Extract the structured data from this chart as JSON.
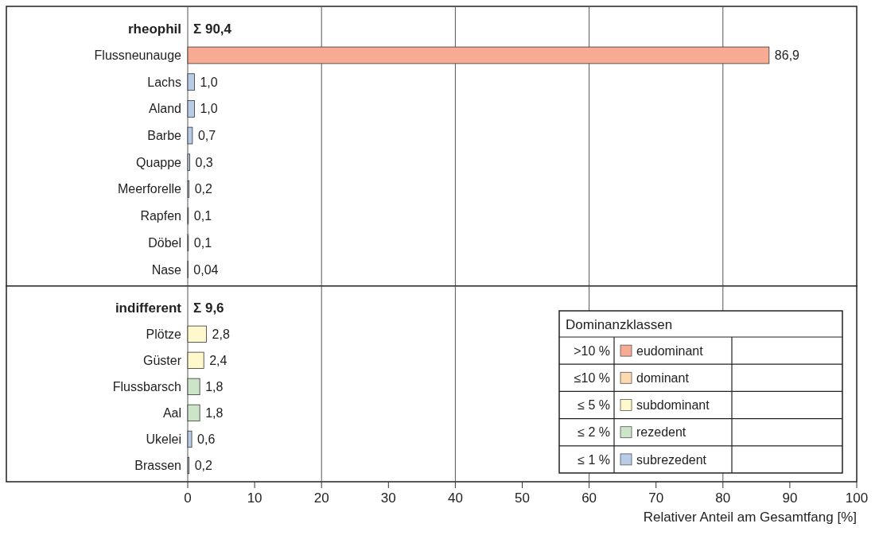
{
  "chart_data": [
    {
      "type": "bar",
      "orientation": "horizontal",
      "stacked": true,
      "tick_labels": "y",
      "categories": [
        "rheophil",
        "Flussneunauge",
        "Lachs",
        "Aland",
        "Barbe",
        "Quappe",
        "Meerforelle",
        "Rapfen",
        "Döbel",
        "Nase"
      ],
      "series": [
        {
          "color": "#f7ab92",
          "values": [
            null,
            86.9,
            null,
            null,
            null,
            null,
            null,
            null,
            null,
            null
          ],
          "value_labels": [
            null,
            "86,9",
            null,
            null,
            null,
            null,
            null,
            null,
            null,
            null
          ]
        },
        {
          "color": "#b8cce8",
          "values": [
            null,
            null,
            1.0,
            1.0,
            0.7,
            0.3,
            0.2,
            0.1,
            0.1,
            0.04
          ],
          "value_labels": [
            null,
            null,
            "1,0",
            "1,0",
            "0,7",
            "0,3",
            "0,2",
            "0,1",
            "0,1",
            "0,04"
          ]
        }
      ],
      "xlim": [
        0,
        100
      ],
      "xticks": [
        0,
        10,
        20,
        30,
        40,
        50,
        60,
        70,
        80,
        90,
        100
      ],
      "ref_lines": [
        {
          "axis": "x",
          "value": 20,
          "color": "#555555"
        },
        {
          "axis": "x",
          "value": 40,
          "color": "#555555"
        },
        {
          "axis": "x",
          "value": 60,
          "color": "#555555"
        },
        {
          "axis": "x",
          "value": 80,
          "color": "#555555"
        }
      ],
      "annotations": [
        "Σ 90,4"
      ]
    },
    {
      "type": "bar",
      "orientation": "horizontal",
      "stacked": true,
      "xlabel": "Relativer Anteil am Gesamtfang [%]",
      "categories": [
        "indifferent",
        "Plötze",
        "Güster",
        "Flussbarsch",
        "Aal",
        "Ukelei",
        "Brassen"
      ],
      "series": [
        {
          "name": "eudominant",
          "color": "#f7ab92",
          "values": [
            null,
            null,
            null,
            null,
            null,
            null,
            null
          ],
          "value_labels": [
            null,
            null,
            null,
            null,
            null,
            null,
            null
          ]
        },
        {
          "name": "dominant",
          "color": "#fdd9b0",
          "values": [
            null,
            null,
            null,
            null,
            null,
            null,
            null
          ],
          "value_labels": [
            null,
            null,
            null,
            null,
            null,
            null,
            null
          ]
        },
        {
          "name": "subdominant",
          "color": "#fff8cc",
          "values": [
            null,
            2.8,
            2.4,
            null,
            null,
            null,
            null
          ],
          "value_labels": [
            null,
            "2,8",
            "2,4",
            null,
            null,
            null,
            null
          ]
        },
        {
          "name": "rezedent",
          "color": "#cce5c8",
          "values": [
            null,
            null,
            null,
            1.8,
            1.8,
            null,
            null
          ],
          "value_labels": [
            null,
            null,
            null,
            "1,8",
            "1,8",
            null,
            null
          ]
        },
        {
          "name": "subrezedent",
          "color": "#b8cce8",
          "values": [
            null,
            null,
            null,
            null,
            null,
            0.6,
            0.2
          ],
          "value_labels": [
            null,
            null,
            null,
            null,
            null,
            "0,6",
            "0,2"
          ]
        }
      ],
      "xlim": [
        0,
        100
      ],
      "xticks": [
        0,
        10,
        20,
        30,
        40,
        50,
        60,
        70,
        80,
        90,
        100
      ],
      "ref_lines": [
        {
          "axis": "x",
          "value": 20,
          "color": "#555555"
        },
        {
          "axis": "x",
          "value": 40,
          "color": "#555555"
        },
        {
          "axis": "x",
          "value": 60,
          "color": "#555555"
        },
        {
          "axis": "x",
          "value": 80,
          "color": "#555555"
        }
      ],
      "legend": "bottom right",
      "legend_title": "Dominanzklassen",
      "annotations": [
        "Σ 9,6",
        ">10 %",
        "≤10 %",
        "≤ 5 %",
        "≤ 2 %",
        "≤ 1 %"
      ]
    }
  ]
}
